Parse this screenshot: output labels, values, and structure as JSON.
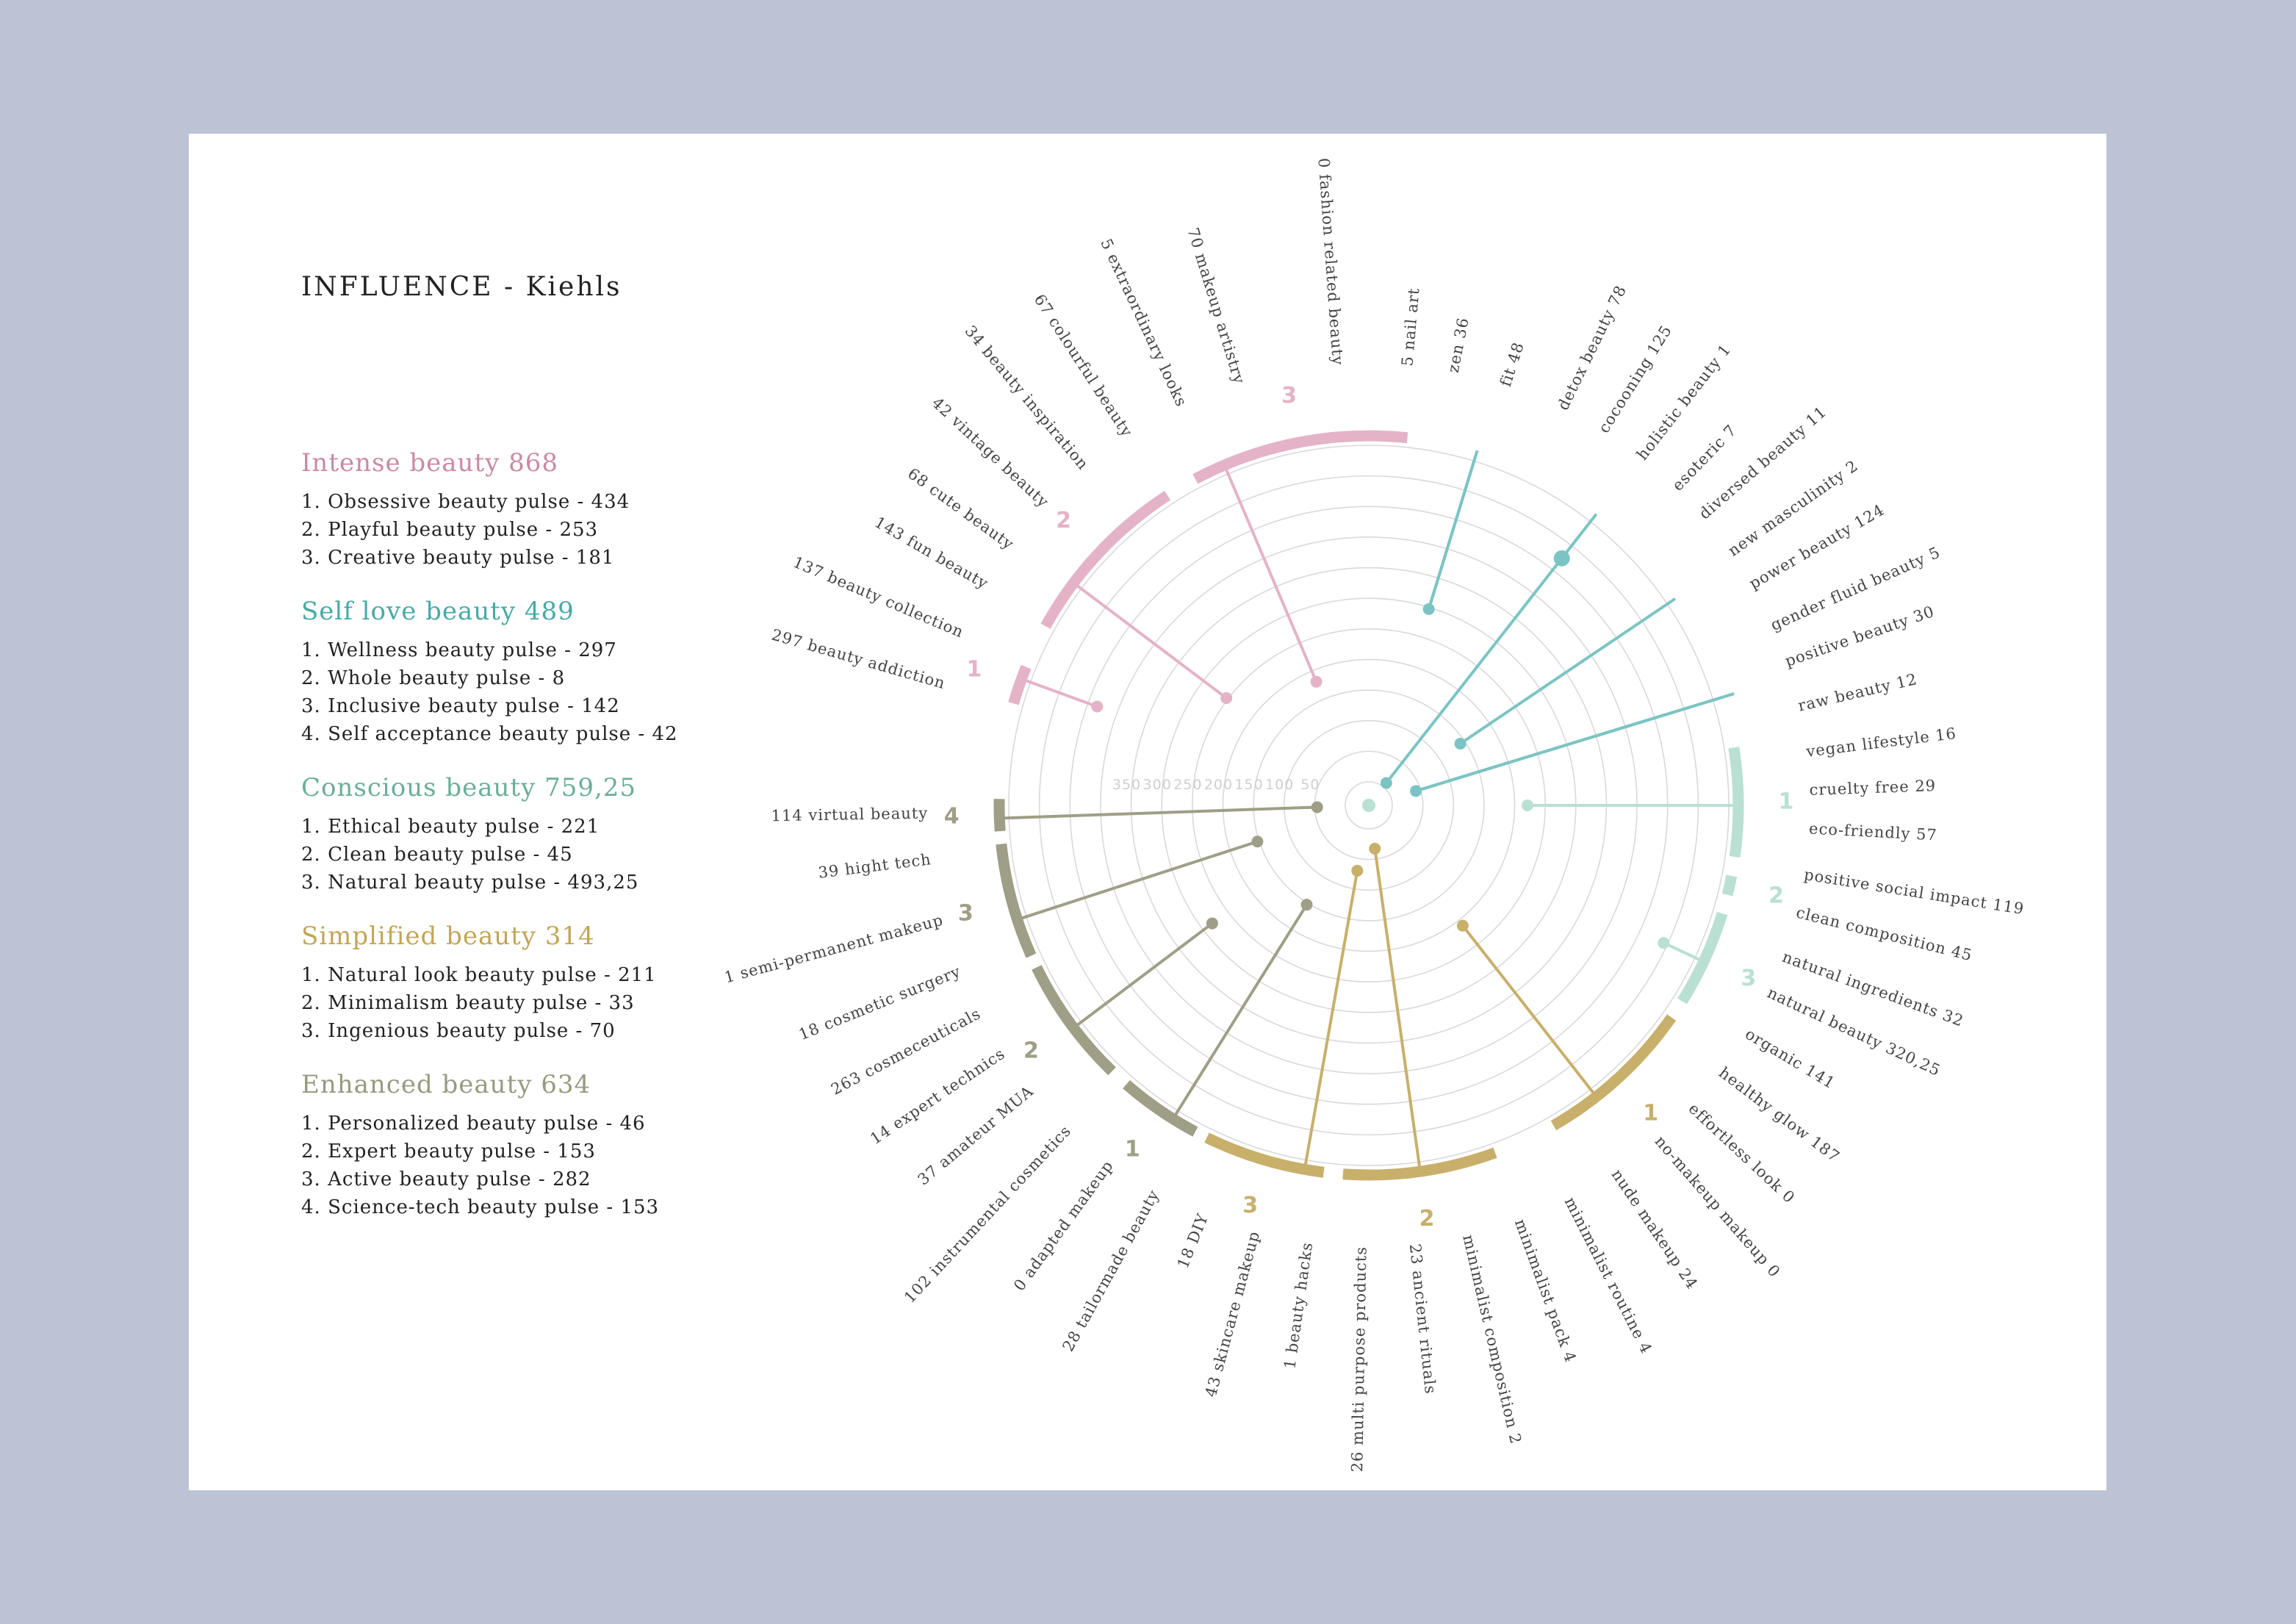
{
  "title": "INFLUENCE - Kiehls",
  "colors": {
    "intense": "#e4b3c7",
    "intense_text": "#c98aa3",
    "selflove": "#7cc4c4",
    "selflove_text": "#47aaa6",
    "conscious": "#b9e0d3",
    "conscious_text": "#6aaf96",
    "simplified": "#c8b06b",
    "simplified_text": "#c2a656",
    "enhanced": "#9e9f86",
    "enhanced_text": "#979a80",
    "grid": "#d9d9d9",
    "label": "#444444"
  },
  "legend": [
    {
      "key": "intense",
      "head": "Intense beauty 868",
      "items": [
        "1. Obsessive beauty pulse - 434",
        "2. Playful beauty pulse - 253",
        "3. Creative beauty pulse - 181"
      ]
    },
    {
      "key": "selflove",
      "head": "Self love beauty 489",
      "items": [
        "1. Wellness beauty pulse - 297",
        "2. Whole beauty pulse - 8",
        "3. Inclusive beauty pulse - 142",
        "4. Self acceptance beauty pulse - 42"
      ]
    },
    {
      "key": "conscious",
      "head": "Conscious beauty 759,25",
      "items": [
        "1. Ethical beauty pulse - 221",
        "2. Clean beauty pulse - 45",
        "3. Natural beauty pulse - 493,25"
      ]
    },
    {
      "key": "simplified",
      "head": "Simplified beauty 314",
      "items": [
        "1. Natural look beauty pulse - 211",
        "2. Minimalism beauty pulse - 33",
        "3. Ingenious beauty pulse - 70"
      ]
    },
    {
      "key": "enhanced",
      "head": "Enhanced beauty 634",
      "items": [
        "1. Personalized beauty pulse - 46",
        "2. Expert beauty pulse - 153",
        "3. Active beauty pulse - 282",
        "4. Science-tech beauty pulse - 153"
      ]
    }
  ],
  "chart_data": {
    "type": "radial",
    "radial_axis": {
      "ticks": [
        50,
        100,
        150,
        200,
        250,
        300,
        350
      ],
      "range": [
        0,
        550
      ]
    },
    "labels": [
      {
        "text": "0 fashion related beauty",
        "angle": -94
      },
      {
        "text": "5 nail art",
        "angle": -85
      },
      {
        "text": "zen 36",
        "angle": -79
      },
      {
        "text": "fit 48",
        "angle": -72
      },
      {
        "text": "detox beauty 78",
        "angle": -64
      },
      {
        "text": "cocooning 125",
        "angle": -58
      },
      {
        "text": "holistic beauty 1",
        "angle": -52
      },
      {
        "text": "esoteric 7",
        "angle": -46
      },
      {
        "text": "diversed beauty 11",
        "angle": -41
      },
      {
        "text": "new masculinity 2",
        "angle": -35
      },
      {
        "text": "power beauty 124",
        "angle": -30
      },
      {
        "text": "gender fluid beauty 5",
        "angle": -24
      },
      {
        "text": "positive beauty 30",
        "angle": -19
      },
      {
        "text": "raw beauty 12",
        "angle": -13
      },
      {
        "text": "vegan lifestyle 16",
        "angle": -7
      },
      {
        "text": "cruelty free 29",
        "angle": -2
      },
      {
        "text": "eco-friendly 57",
        "angle": 3
      },
      {
        "text": "positive social impact 119",
        "angle": 9
      },
      {
        "text": "clean composition 45",
        "angle": 14
      },
      {
        "text": "natural ingredients 32",
        "angle": 20
      },
      {
        "text": "natural beauty 320,25",
        "angle": 25
      },
      {
        "text": "organic 141",
        "angle": 31
      },
      {
        "text": "healthy glow 187",
        "angle": 37
      },
      {
        "text": "effortless look 0",
        "angle": 43
      },
      {
        "text": "no-makeup makeup 0",
        "angle": 49
      },
      {
        "text": "nude makeup 24",
        "angle": 56
      },
      {
        "text": "minimalist routine 4",
        "angle": 63
      },
      {
        "text": "minimalist pack 4",
        "angle": 70
      },
      {
        "text": "minimalist composition 2",
        "angle": 77
      },
      {
        "text": "23 ancient rituals",
        "angle": 84
      },
      {
        "text": "26 multi purpose products",
        "angle": 91
      },
      {
        "text": "1 beauty hacks",
        "angle": 98
      },
      {
        "text": "43 skincare makeup",
        "angle": 105
      },
      {
        "text": "18 DIY",
        "angle": 112
      },
      {
        "text": "28 tailormade beauty",
        "angle": 119
      },
      {
        "text": "0 adapted makeup",
        "angle": 126
      },
      {
        "text": "102 instrumental cosmetics",
        "angle": 133
      },
      {
        "text": "37 amateur MUA",
        "angle": 140
      },
      {
        "text": "14 expert technics",
        "angle": 146
      },
      {
        "text": "263 cosmeceuticals",
        "angle": 152
      },
      {
        "text": "18 cosmetic surgery",
        "angle": 158
      },
      {
        "text": "1 semi-permanent makeup",
        "angle": 165
      },
      {
        "text": "39 hight tech",
        "angle": 173
      },
      {
        "text": "114 virtual beauty",
        "angle": 179
      },
      {
        "text": "297 beauty addiction",
        "angle": 196
      },
      {
        "text": "137 beauty collection",
        "angle": 203
      },
      {
        "text": "143 fun beauty",
        "angle": 210
      },
      {
        "text": "68 cute beauty",
        "angle": 216
      },
      {
        "text": "42 vintage beauty",
        "angle": 223
      },
      {
        "text": "34 beauty inspiration",
        "angle": 230
      },
      {
        "text": "67 colourful beauty",
        "angle": 237
      },
      {
        "text": "5 extraordinary looks",
        "angle": 245
      },
      {
        "text": "70 makeup artistry",
        "angle": 253
      }
    ],
    "arcs": [
      {
        "group": "intense",
        "num": "1",
        "start": 196,
        "end": 202
      },
      {
        "group": "intense",
        "num": "2",
        "start": 209,
        "end": 237
      },
      {
        "group": "intense",
        "num": "3",
        "start": 242,
        "end": 276
      },
      {
        "group": "conscious",
        "num": "1",
        "start": -9,
        "end": 8
      },
      {
        "group": "conscious",
        "num": "2",
        "start": 11,
        "end": 14
      },
      {
        "group": "conscious",
        "num": "3",
        "start": 17,
        "end": 32
      },
      {
        "group": "simplified",
        "num": "1",
        "start": 35,
        "end": 60
      },
      {
        "group": "simplified",
        "num": "2",
        "start": 70,
        "end": 94
      },
      {
        "group": "simplified",
        "num": "3",
        "start": 97,
        "end": 116
      },
      {
        "group": "enhanced",
        "num": "1",
        "start": 118,
        "end": 131
      },
      {
        "group": "enhanced",
        "num": "2",
        "start": 134,
        "end": 154
      },
      {
        "group": "enhanced",
        "num": "3",
        "start": 156,
        "end": 174
      },
      {
        "group": "enhanced",
        "num": "4",
        "start": 176,
        "end": 181
      }
    ],
    "stems": [
      {
        "group": "intense",
        "angle": 247,
        "value": 181
      },
      {
        "group": "intense",
        "angle": 217,
        "value": 253
      },
      {
        "group": "intense",
        "angle": 200,
        "value": 434
      },
      {
        "group": "selflove",
        "angle": -73,
        "value": 297
      },
      {
        "group": "selflove",
        "angle": -52,
        "value": 8
      },
      {
        "group": "selflove",
        "angle": -34,
        "value": 142
      },
      {
        "group": "selflove",
        "angle": -17,
        "value": 42
      },
      {
        "group": "conscious",
        "angle": 0,
        "value": 221
      },
      {
        "group": "conscious",
        "angle": 25,
        "value": 493.25
      },
      {
        "group": "simplified",
        "angle": 52,
        "value": 211
      },
      {
        "group": "simplified",
        "angle": 82,
        "value": 33
      },
      {
        "group": "simplified",
        "angle": 100,
        "value": 70
      },
      {
        "group": "enhanced",
        "angle": 178,
        "value": 46
      },
      {
        "group": "enhanced",
        "angle": 162,
        "value": 153
      },
      {
        "group": "enhanced",
        "angle": 143,
        "value": 282
      },
      {
        "group": "enhanced",
        "angle": 122,
        "value": 153
      }
    ]
  }
}
